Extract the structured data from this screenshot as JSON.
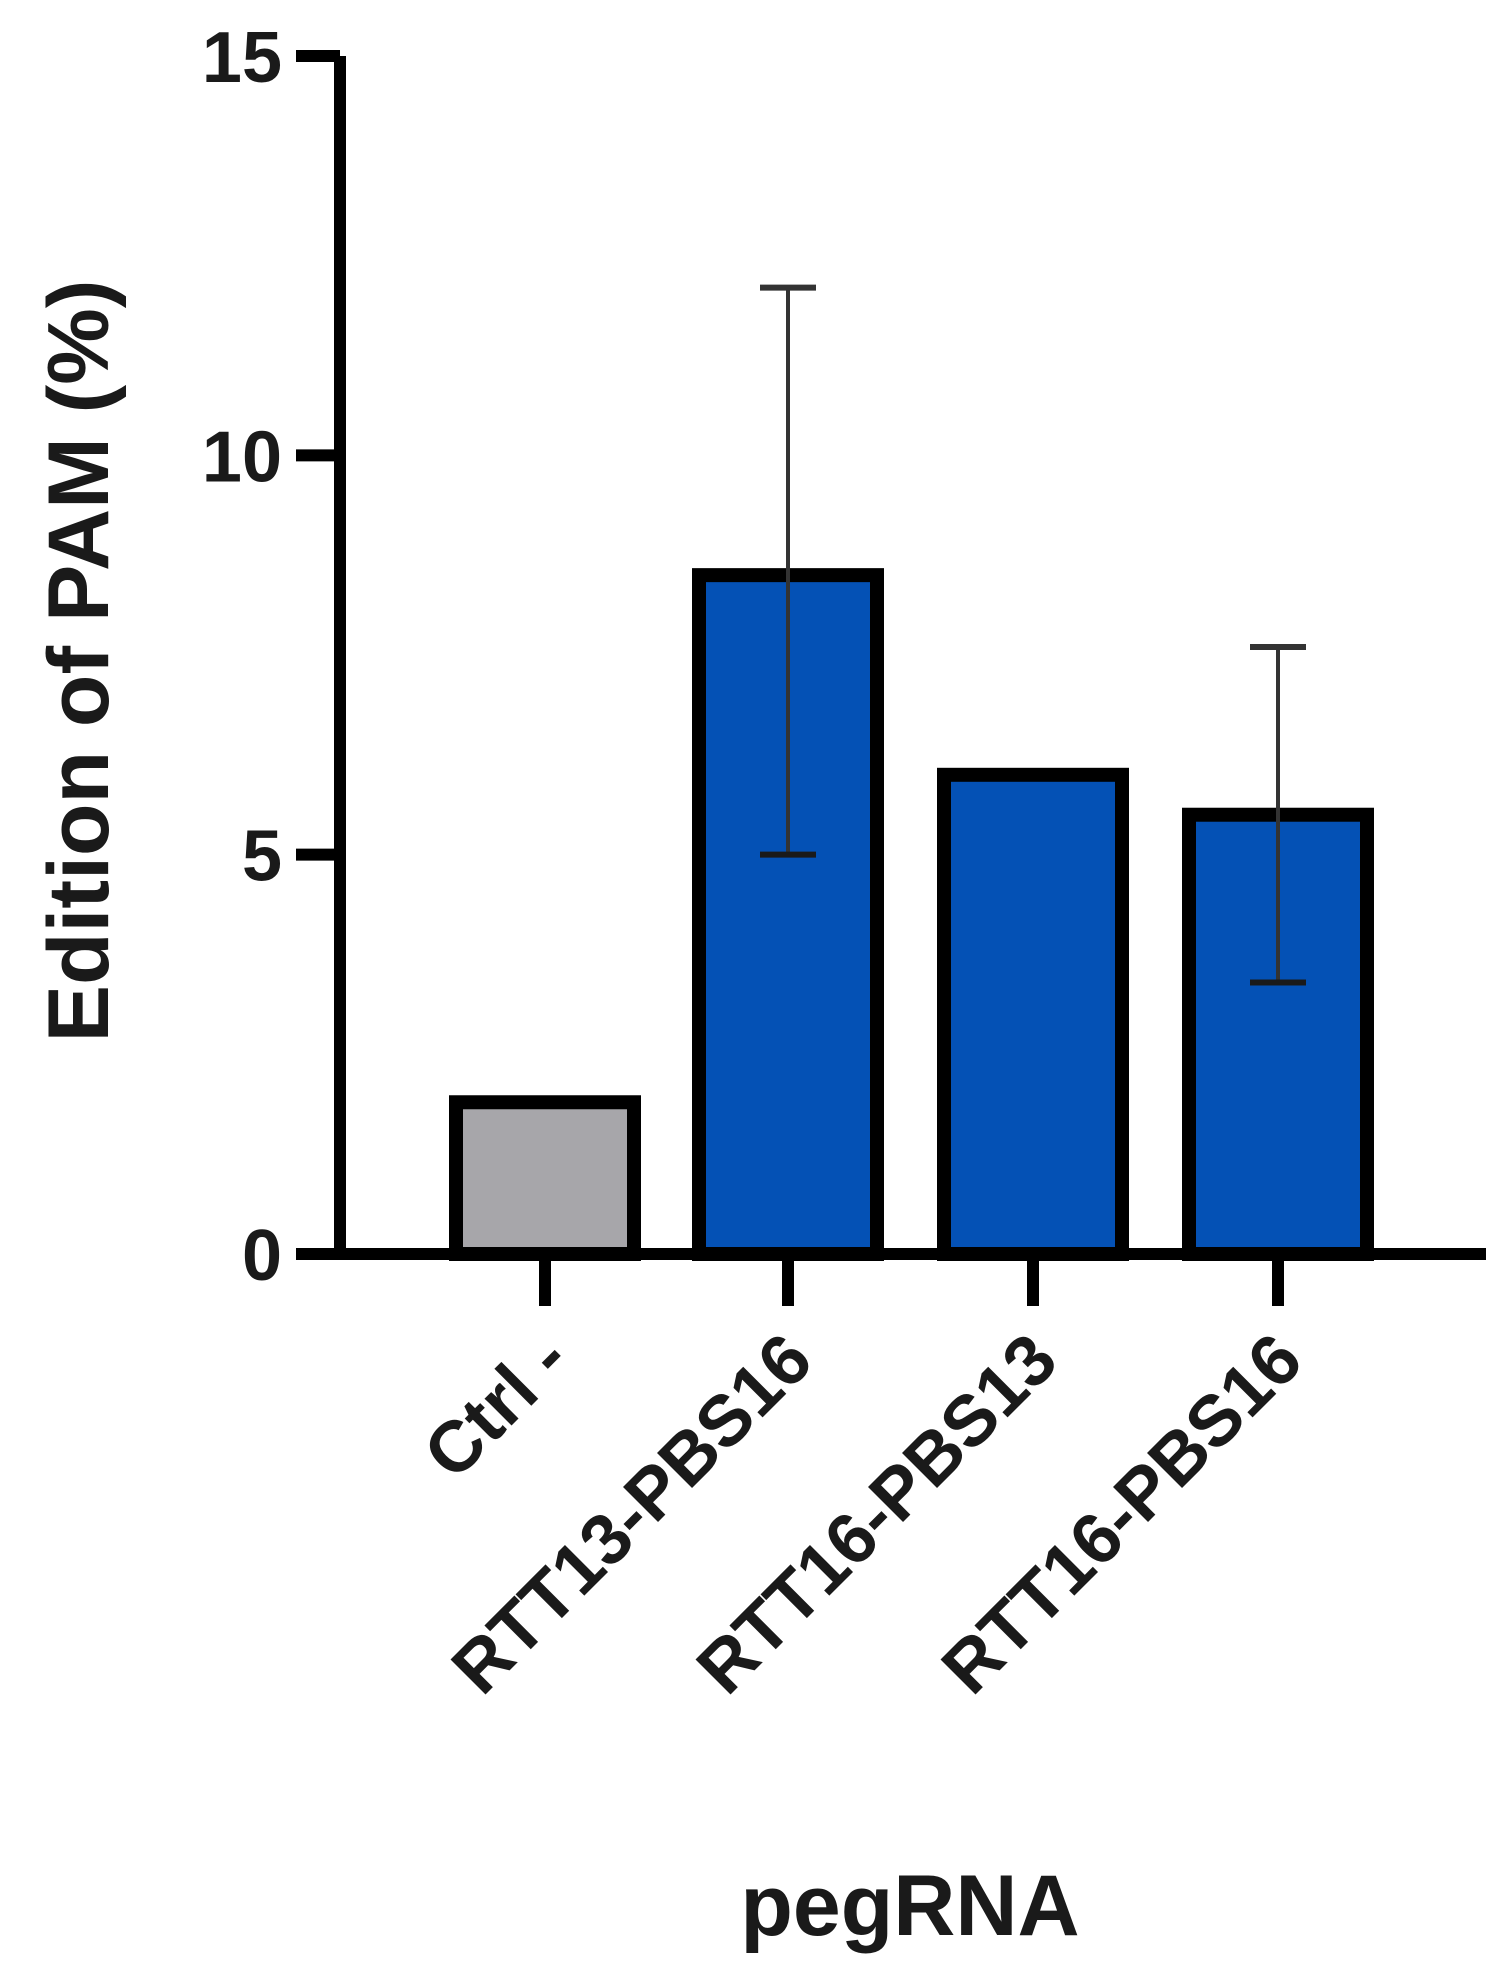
{
  "chart_data": {
    "type": "bar",
    "title": "",
    "xlabel": "pegRNA",
    "ylabel": "Edition of PAM (%)",
    "ylim": [
      0,
      15
    ],
    "yticks": [
      0,
      5,
      10,
      15
    ],
    "categories": [
      "Ctrl -",
      "RTT13-PBS16",
      "RTT16-PBS13",
      "RTT16-PBS16"
    ],
    "values": [
      1.9,
      8.5,
      6.0,
      5.5
    ],
    "error_low": [
      null,
      5.0,
      null,
      3.4
    ],
    "error_high": [
      null,
      12.1,
      null,
      7.6
    ],
    "bar_colors": [
      "#a7a6aa",
      "#0451b5",
      "#0451b5",
      "#0451b5"
    ],
    "outline_color": "#000000",
    "error_color": "#333333",
    "grid": false,
    "legend": "none"
  }
}
